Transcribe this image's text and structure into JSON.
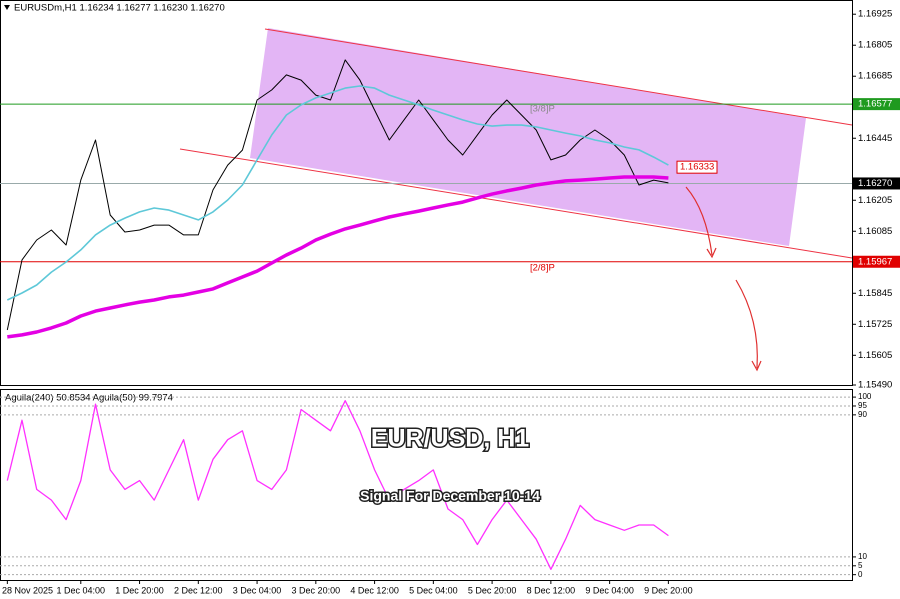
{
  "chart_data": [
    {
      "type": "line",
      "title": "EURUSDm,H1 1.16234 1.16277 1.16230 1.16270",
      "categories": [
        "28 Nov 2025",
        null,
        null,
        null,
        null,
        "1 Dec 04:00",
        null,
        null,
        null,
        "1 Dec 20:00",
        null,
        null,
        null,
        "2 Dec 12:00",
        null,
        null,
        null,
        "3 Dec 04:00",
        null,
        null,
        null,
        "3 Dec 20:00",
        null,
        null,
        null,
        "4 Dec 12:00",
        null,
        null,
        null,
        "5 Dec 04:00",
        null,
        null,
        null,
        "5 Dec 20:00",
        null,
        null,
        null,
        "8 Dec 12:00",
        null,
        null,
        null,
        "9 Dec 04:00",
        null,
        null,
        null,
        "9 Dec 20:00",
        null,
        null,
        null,
        null,
        null,
        null,
        null,
        null,
        null,
        null,
        null,
        null
      ],
      "series": [
        {
          "color": "#000000",
          "values": [
            1.15703,
            1.15974,
            1.16051,
            1.1609,
            1.16032,
            1.16283,
            1.16438,
            1.16148,
            1.16082,
            1.1609,
            1.16109,
            1.16109,
            1.16071,
            1.16071,
            1.16245,
            1.16341,
            1.16399,
            1.16593,
            1.16632,
            1.1669,
            1.1667,
            1.16612,
            1.16593,
            1.16748,
            1.1667,
            1.16554,
            1.16438,
            1.16516,
            1.16593,
            1.16516,
            1.16438,
            1.1638,
            1.16458,
            1.16535,
            1.16593,
            1.16535,
            1.16477,
            1.16361,
            1.1638,
            1.16438,
            1.16477,
            1.16438,
            1.1638,
            1.16264,
            1.16283,
            1.16272,
            null,
            null,
            null,
            null,
            null,
            null,
            null,
            null,
            null,
            null,
            null,
            null
          ]
        },
        {
          "color": "#5ec8d8",
          "values": [
            1.15819,
            1.15846,
            1.15877,
            1.15927,
            1.15966,
            1.16013,
            1.16071,
            1.16109,
            1.16136,
            1.1616,
            1.16175,
            1.16167,
            1.16148,
            1.16129,
            1.1616,
            1.16206,
            1.16264,
            1.16361,
            1.16458,
            1.16535,
            1.16574,
            1.16601,
            1.1662,
            1.16639,
            1.16647,
            1.16639,
            1.16612,
            1.16593,
            1.16574,
            1.16554,
            1.16535,
            1.16516,
            1.165,
            1.16492,
            1.16496,
            1.16496,
            1.16489,
            1.16477,
            1.16465,
            1.16454,
            1.16438,
            1.16427,
            1.16411,
            1.164,
            1.16372,
            1.16341,
            null,
            null,
            null,
            null,
            null,
            null,
            null,
            null,
            null,
            null,
            null,
            null
          ]
        },
        {
          "color": "#e400e4",
          "values": [
            1.15676,
            1.15684,
            1.15695,
            1.15711,
            1.1573,
            1.15757,
            1.15776,
            1.15788,
            1.158,
            1.15811,
            1.15819,
            1.15831,
            1.15838,
            1.1585,
            1.15862,
            1.15885,
            1.15908,
            1.15931,
            1.15962,
            1.15993,
            1.1602,
            1.16051,
            1.16074,
            1.16094,
            1.16109,
            1.16125,
            1.1614,
            1.16152,
            1.16163,
            1.16175,
            1.16187,
            1.16198,
            1.16214,
            1.16229,
            1.16241,
            1.16252,
            1.16264,
            1.16272,
            1.1628,
            1.16283,
            1.16287,
            1.16291,
            1.16295,
            1.16295,
            1.16295,
            1.16291,
            null,
            null,
            null,
            null,
            null,
            null,
            null,
            null,
            null,
            null,
            null,
            null
          ]
        }
      ],
      "ylim": [
        1.1549,
        1.1698
      ],
      "yticks": [
        1.16925,
        1.16805,
        1.16685,
        1.16445,
        1.16205,
        1.16085,
        1.15845,
        1.15725,
        1.15605,
        {
          "value": 1.1549,
          "label": "1.15490"
        }
      ],
      "levels": [
        {
          "name": "[3/8]P",
          "value": 1.16577,
          "color": "#1f9a1f"
        },
        {
          "name": "[2/8]P",
          "value": 1.15967,
          "color": "#e00000"
        }
      ],
      "current_price": {
        "value": 1.1627,
        "label": "1.16270"
      },
      "marker": {
        "value": 1.16333,
        "color": "#e00000"
      }
    },
    {
      "type": "line",
      "title": "Aguila(240) 50.8534 Aguila(50) 99.7974",
      "series": [
        {
          "color": "#ff30ff",
          "values": [
            53,
            87,
            48,
            42,
            31,
            53,
            96,
            59,
            48,
            53,
            42,
            59,
            76,
            42,
            65,
            76,
            81,
            53,
            48,
            59,
            93,
            87,
            81,
            98,
            81,
            59,
            42,
            48,
            53,
            59,
            37,
            31,
            17,
            31,
            42,
            31,
            20,
            3,
            20,
            39,
            31,
            28,
            25,
            28,
            28,
            22,
            null,
            null,
            null,
            null,
            null,
            null,
            null,
            null,
            null,
            null,
            null,
            null
          ]
        }
      ],
      "ylim": [
        -3,
        104
      ],
      "yticks": [
        0,
        5,
        10,
        90,
        95,
        100
      ],
      "annotations": [
        "EUR/USD, H1",
        "Signal For December 10-14"
      ]
    }
  ]
}
